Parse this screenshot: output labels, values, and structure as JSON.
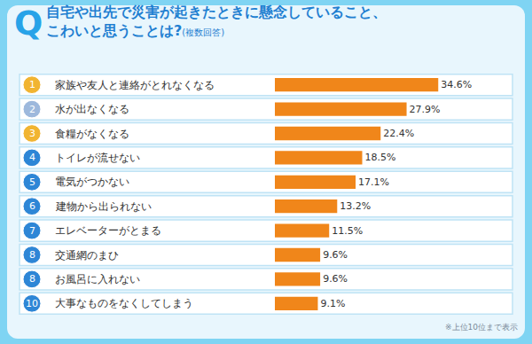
{
  "chart_data": {
    "type": "bar",
    "orientation": "horizontal",
    "title": "自宅や出先で災害が起きたときに懸念していること、\nこわいと思うことは?",
    "subtitle": "(複数回答)",
    "annotations": [
      "Q",
      "※上位10位まで表示"
    ],
    "ranks": [
      1,
      2,
      3,
      4,
      5,
      6,
      7,
      8,
      8,
      10
    ],
    "categories": [
      "家族や友人と連絡がとれなくなる",
      "水が出なくなる",
      "食糧がなくなる",
      "トイレが流せない",
      "電気がつかない",
      "建物から出られない",
      "エレベーターがとまる",
      "交通網のまひ",
      "お風呂に入れない",
      "大事なものをなくしてしまう"
    ],
    "values": [
      34.6,
      27.9,
      22.4,
      18.5,
      17.1,
      13.2,
      11.5,
      9.6,
      9.6,
      9.1
    ],
    "value_labels": [
      "34.6%",
      "27.9%",
      "22.4%",
      "18.5%",
      "17.1%",
      "13.2%",
      "11.5%",
      "9.6%",
      "9.6%",
      "9.1%"
    ],
    "data_labels": true,
    "color": "#f0861a",
    "xlim": [
      0,
      40
    ],
    "tick_labels": false,
    "grid": false
  }
}
